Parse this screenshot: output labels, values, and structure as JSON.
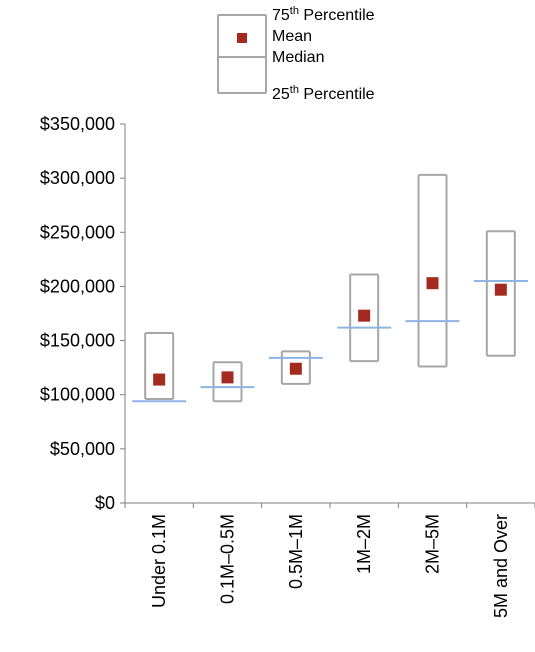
{
  "chart_data": {
    "type": "box",
    "title": "",
    "xlabel": "",
    "ylabel": "",
    "ylim": [
      0,
      350000
    ],
    "y_ticks": [
      0,
      50000,
      100000,
      150000,
      200000,
      250000,
      300000,
      350000
    ],
    "y_tick_labels": [
      "$0",
      "$50,000",
      "$100,000",
      "$150,000",
      "$200,000",
      "$250,000",
      "$300,000",
      "$350,000"
    ],
    "categories": [
      "Under 0.1M",
      "0.1M–0.5M",
      "0.5M–1M",
      "1M–2M",
      "2M–5M",
      "5M and Over"
    ],
    "series": [
      {
        "name": "75th Percentile",
        "values": [
          157000,
          130000,
          140000,
          211000,
          303000,
          251000
        ]
      },
      {
        "name": "Mean",
        "values": [
          114000,
          116000,
          124000,
          173000,
          203000,
          197000
        ]
      },
      {
        "name": "Median",
        "values": [
          94000,
          107000,
          134000,
          162000,
          168000,
          205000
        ]
      },
      {
        "name": "25th Percentile",
        "values": [
          96000,
          94000,
          110000,
          131000,
          126000,
          136000
        ]
      }
    ],
    "legend": {
      "position": "top",
      "items": [
        {
          "base": "75",
          "sup": "th",
          "rest": " Percentile"
        },
        {
          "base": "Mean",
          "sup": "",
          "rest": ""
        },
        {
          "base": "Median",
          "sup": "",
          "rest": ""
        },
        {
          "base": "25",
          "sup": "th",
          "rest": " Percentile"
        }
      ]
    },
    "grid": false,
    "colors": {
      "box": "#a6a6a6",
      "median": "#8eb4e3",
      "mean": "#a4291e",
      "axis": "#7f7f7f"
    }
  }
}
